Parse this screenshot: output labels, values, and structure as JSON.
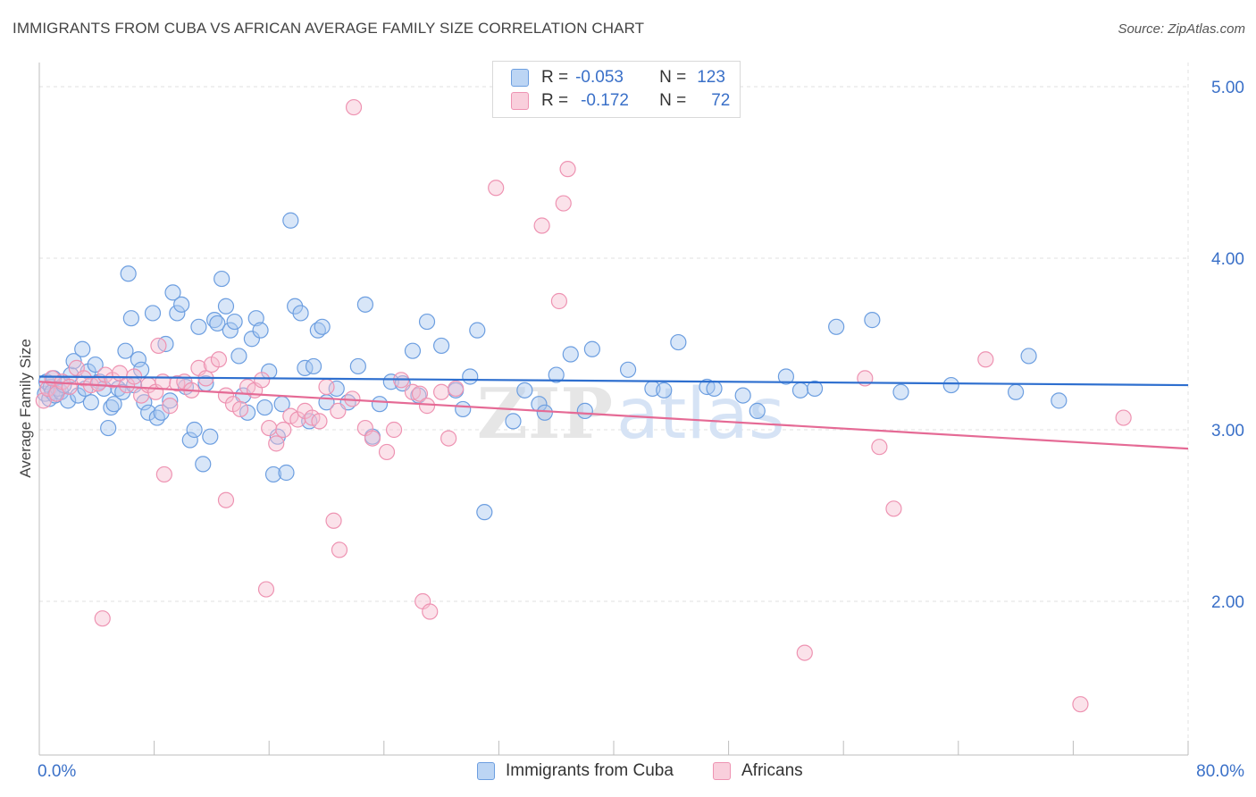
{
  "header": {
    "title": "IMMIGRANTS FROM CUBA VS AFRICAN AVERAGE FAMILY SIZE CORRELATION CHART",
    "source": "Source: ZipAtlas.com"
  },
  "legend_top": {
    "rows": [
      {
        "r_label": "R =",
        "r_value": "-0.053",
        "n_label": "N =",
        "n_value": "123"
      },
      {
        "r_label": "R =",
        "r_value": "-0.172",
        "n_label": "N =",
        "n_value": "72"
      }
    ]
  },
  "colors": {
    "cuba_fill": "#a8c8f0",
    "cuba_stroke": "#6c9ee0",
    "cuba_line": "#2e6fcf",
    "africa_fill": "#f6bed0",
    "africa_stroke": "#ee93b2",
    "africa_line": "#e56a95",
    "axis_label": "#3a70c8",
    "grid": "#e2e2e2"
  },
  "chart_data": {
    "type": "scatter",
    "title": "IMMIGRANTS FROM CUBA VS AFRICAN AVERAGE FAMILY SIZE CORRELATION CHART",
    "xlabel": "",
    "ylabel": "Average Family Size",
    "xlim": [
      0,
      80
    ],
    "ylim": [
      1.0,
      5.1
    ],
    "x_tick_labels": [
      "0.0%",
      "80.0%"
    ],
    "y_ticks": [
      2.0,
      3.0,
      4.0,
      5.0
    ],
    "y_tick_labels": [
      "2.00",
      "3.00",
      "4.00",
      "5.00"
    ],
    "grid": true,
    "legend_position": "top-center",
    "watermark": "ZIPatlas",
    "series": [
      {
        "name": "Immigrants from Cuba",
        "trend": {
          "x0": 0,
          "y0": 3.31,
          "x1": 80,
          "y1": 3.26
        },
        "points": [
          [
            0.4,
            3.21
          ],
          [
            0.5,
            3.28
          ],
          [
            0.7,
            3.18
          ],
          [
            0.8,
            3.25
          ],
          [
            0.9,
            3.22
          ],
          [
            1.0,
            3.3
          ],
          [
            1.1,
            3.2
          ],
          [
            1.3,
            3.24
          ],
          [
            1.5,
            3.22
          ],
          [
            1.7,
            3.26
          ],
          [
            2.0,
            3.17
          ],
          [
            2.2,
            3.32
          ],
          [
            2.4,
            3.4
          ],
          [
            2.7,
            3.2
          ],
          [
            3.0,
            3.47
          ],
          [
            3.2,
            3.24
          ],
          [
            3.4,
            3.34
          ],
          [
            3.6,
            3.16
          ],
          [
            3.9,
            3.38
          ],
          [
            4.2,
            3.28
          ],
          [
            4.5,
            3.24
          ],
          [
            4.8,
            3.01
          ],
          [
            5.0,
            3.13
          ],
          [
            5.2,
            3.15
          ],
          [
            5.5,
            3.24
          ],
          [
            5.8,
            3.22
          ],
          [
            6.0,
            3.46
          ],
          [
            6.2,
            3.91
          ],
          [
            6.4,
            3.65
          ],
          [
            6.6,
            3.26
          ],
          [
            6.9,
            3.41
          ],
          [
            7.1,
            3.35
          ],
          [
            7.3,
            3.16
          ],
          [
            7.6,
            3.1
          ],
          [
            7.9,
            3.68
          ],
          [
            8.2,
            3.07
          ],
          [
            8.5,
            3.1
          ],
          [
            8.8,
            3.5
          ],
          [
            9.1,
            3.17
          ],
          [
            9.3,
            3.8
          ],
          [
            9.6,
            3.68
          ],
          [
            9.9,
            3.73
          ],
          [
            10.2,
            3.25
          ],
          [
            10.5,
            2.94
          ],
          [
            10.8,
            3.0
          ],
          [
            11.1,
            3.6
          ],
          [
            11.4,
            2.8
          ],
          [
            11.6,
            3.27
          ],
          [
            11.9,
            2.96
          ],
          [
            12.2,
            3.64
          ],
          [
            12.4,
            3.62
          ],
          [
            12.7,
            3.88
          ],
          [
            13.0,
            3.72
          ],
          [
            13.3,
            3.58
          ],
          [
            13.6,
            3.63
          ],
          [
            13.9,
            3.43
          ],
          [
            14.2,
            3.2
          ],
          [
            14.5,
            3.1
          ],
          [
            14.8,
            3.53
          ],
          [
            15.1,
            3.65
          ],
          [
            15.4,
            3.58
          ],
          [
            15.7,
            3.13
          ],
          [
            16.0,
            3.34
          ],
          [
            16.3,
            2.74
          ],
          [
            16.6,
            2.96
          ],
          [
            16.9,
            3.15
          ],
          [
            17.2,
            2.75
          ],
          [
            17.5,
            4.22
          ],
          [
            17.8,
            3.72
          ],
          [
            18.2,
            3.68
          ],
          [
            18.5,
            3.36
          ],
          [
            18.8,
            3.05
          ],
          [
            19.1,
            3.37
          ],
          [
            19.4,
            3.58
          ],
          [
            19.7,
            3.6
          ],
          [
            20.0,
            3.16
          ],
          [
            20.7,
            3.24
          ],
          [
            21.5,
            3.16
          ],
          [
            22.2,
            3.37
          ],
          [
            22.7,
            3.73
          ],
          [
            23.2,
            2.96
          ],
          [
            23.7,
            3.15
          ],
          [
            24.5,
            3.28
          ],
          [
            25.3,
            3.27
          ],
          [
            26.0,
            3.46
          ],
          [
            26.4,
            3.2
          ],
          [
            27.0,
            3.63
          ],
          [
            28.0,
            3.49
          ],
          [
            29.0,
            3.23
          ],
          [
            29.5,
            3.12
          ],
          [
            30.0,
            3.31
          ],
          [
            30.5,
            3.58
          ],
          [
            31.0,
            2.52
          ],
          [
            33.0,
            3.05
          ],
          [
            33.8,
            3.23
          ],
          [
            34.8,
            3.15
          ],
          [
            35.2,
            3.1
          ],
          [
            36.0,
            3.32
          ],
          [
            37.0,
            3.44
          ],
          [
            38.0,
            3.11
          ],
          [
            38.5,
            3.47
          ],
          [
            41.0,
            3.35
          ],
          [
            42.7,
            3.24
          ],
          [
            43.5,
            3.23
          ],
          [
            44.5,
            3.51
          ],
          [
            46.5,
            3.25
          ],
          [
            47.0,
            3.24
          ],
          [
            49.0,
            3.2
          ],
          [
            50.0,
            3.11
          ],
          [
            52.0,
            3.31
          ],
          [
            53.0,
            3.23
          ],
          [
            54.0,
            3.24
          ],
          [
            55.5,
            3.6
          ],
          [
            58.0,
            3.64
          ],
          [
            60.0,
            3.22
          ],
          [
            63.5,
            3.26
          ],
          [
            68.0,
            3.22
          ],
          [
            68.9,
            3.43
          ],
          [
            71.0,
            3.17
          ]
        ]
      },
      {
        "name": "Africans",
        "trend": {
          "x0": 0,
          "y0": 3.28,
          "x1": 80,
          "y1": 2.89
        },
        "points": [
          [
            0.3,
            3.17
          ],
          [
            0.6,
            3.24
          ],
          [
            0.9,
            3.3
          ],
          [
            1.2,
            3.21
          ],
          [
            1.6,
            3.28
          ],
          [
            2.1,
            3.25
          ],
          [
            2.6,
            3.36
          ],
          [
            3.1,
            3.3
          ],
          [
            3.6,
            3.26
          ],
          [
            4.1,
            3.27
          ],
          [
            4.6,
            3.32
          ],
          [
            5.1,
            3.29
          ],
          [
            5.6,
            3.33
          ],
          [
            6.1,
            3.26
          ],
          [
            6.6,
            3.31
          ],
          [
            7.1,
            3.2
          ],
          [
            7.6,
            3.26
          ],
          [
            8.1,
            3.22
          ],
          [
            8.6,
            3.28
          ],
          [
            9.1,
            3.14
          ],
          [
            9.6,
            3.27
          ],
          [
            10.1,
            3.28
          ],
          [
            10.6,
            3.23
          ],
          [
            11.1,
            3.36
          ],
          [
            11.6,
            3.3
          ],
          [
            12.0,
            3.38
          ],
          [
            12.5,
            3.41
          ],
          [
            13.0,
            3.2
          ],
          [
            13.5,
            3.15
          ],
          [
            14.0,
            3.12
          ],
          [
            14.5,
            3.25
          ],
          [
            15.0,
            3.23
          ],
          [
            15.5,
            3.29
          ],
          [
            16.0,
            3.01
          ],
          [
            16.5,
            2.92
          ],
          [
            17.0,
            3.0
          ],
          [
            17.5,
            3.08
          ],
          [
            18.0,
            3.06
          ],
          [
            18.5,
            3.11
          ],
          [
            19.0,
            3.07
          ],
          [
            19.5,
            3.05
          ],
          [
            20.0,
            3.25
          ],
          [
            20.8,
            3.11
          ],
          [
            21.8,
            3.18
          ],
          [
            22.7,
            3.01
          ],
          [
            23.2,
            2.95
          ],
          [
            24.2,
            2.87
          ],
          [
            24.7,
            3.0
          ],
          [
            25.2,
            3.29
          ],
          [
            26.0,
            3.22
          ],
          [
            26.5,
            3.21
          ],
          [
            27.0,
            3.14
          ],
          [
            28.0,
            3.22
          ],
          [
            28.5,
            2.95
          ],
          [
            29.0,
            3.24
          ],
          [
            8.7,
            2.74
          ],
          [
            13.0,
            2.59
          ],
          [
            15.8,
            2.07
          ],
          [
            20.5,
            2.47
          ],
          [
            20.9,
            2.3
          ],
          [
            26.7,
            2.0
          ],
          [
            27.2,
            1.94
          ],
          [
            4.4,
            1.9
          ],
          [
            8.3,
            3.49
          ],
          [
            21.9,
            4.88
          ],
          [
            31.8,
            4.41
          ],
          [
            35.0,
            4.19
          ],
          [
            36.5,
            4.32
          ],
          [
            36.8,
            4.52
          ],
          [
            36.2,
            3.75
          ],
          [
            53.3,
            1.7
          ],
          [
            57.5,
            3.3
          ],
          [
            58.5,
            2.9
          ],
          [
            59.5,
            2.54
          ],
          [
            65.9,
            3.41
          ],
          [
            72.5,
            1.4
          ],
          [
            75.5,
            3.07
          ]
        ]
      }
    ]
  },
  "legend_bottom": {
    "items": [
      {
        "label": "Immigrants from Cuba"
      },
      {
        "label": "Africans"
      }
    ]
  }
}
